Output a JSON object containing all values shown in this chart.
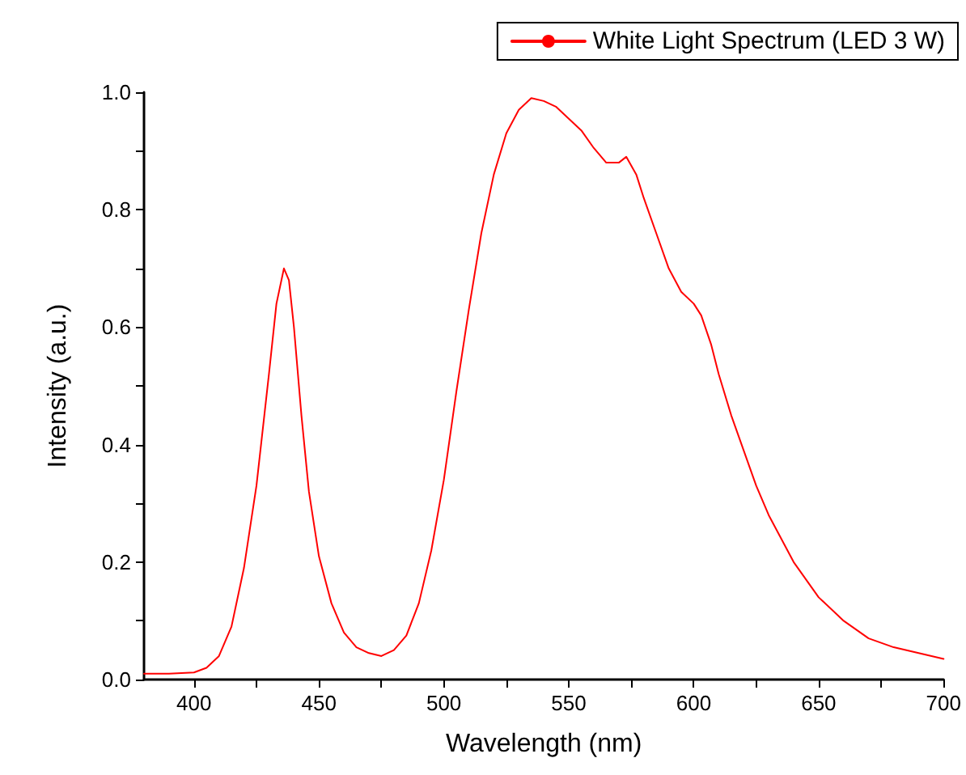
{
  "chart_data": {
    "type": "line",
    "xlabel": "Wavelength (nm)",
    "ylabel": "Intensity (a.u.)",
    "xlim": [
      380,
      700
    ],
    "ylim": [
      0,
      1.0
    ],
    "xticks": [
      {
        "value": 400,
        "label": "400"
      },
      {
        "value": 425,
        "label": null
      },
      {
        "value": 450,
        "label": "450"
      },
      {
        "value": 475,
        "label": null
      },
      {
        "value": 500,
        "label": "500"
      },
      {
        "value": 525,
        "label": null
      },
      {
        "value": 550,
        "label": "550"
      },
      {
        "value": 575,
        "label": null
      },
      {
        "value": 600,
        "label": "600"
      },
      {
        "value": 625,
        "label": null
      },
      {
        "value": 650,
        "label": "650"
      },
      {
        "value": 675,
        "label": null
      },
      {
        "value": 700,
        "label": "700"
      }
    ],
    "yticks": [
      {
        "value": 0,
        "label": "0.0"
      },
      {
        "value": 0.1,
        "label": null
      },
      {
        "value": 0.2,
        "label": "0.2"
      },
      {
        "value": 0.3,
        "label": null
      },
      {
        "value": 0.4,
        "label": "0.4"
      },
      {
        "value": 0.5,
        "label": null
      },
      {
        "value": 0.6,
        "label": "0.6"
      },
      {
        "value": 0.7,
        "label": null
      },
      {
        "value": 0.8,
        "label": "0.8"
      },
      {
        "value": 0.9,
        "label": null
      },
      {
        "value": 1.0,
        "label": "1.0"
      }
    ],
    "grid": false,
    "legend": "top right",
    "marker": "none",
    "line_style": "solid",
    "series": [
      {
        "name": "White Light Spectrum (LED 3 W)",
        "color": "#ff0000",
        "x": [
          380,
          390,
          400,
          405,
          410,
          415,
          420,
          425,
          430,
          433,
          436,
          438,
          440,
          443,
          446,
          450,
          455,
          460,
          465,
          470,
          475,
          480,
          485,
          490,
          495,
          500,
          505,
          510,
          515,
          520,
          525,
          530,
          535,
          540,
          545,
          550,
          555,
          560,
          565,
          570,
          573,
          577,
          580,
          585,
          590,
          595,
          600,
          603,
          607,
          610,
          615,
          620,
          625,
          630,
          640,
          650,
          660,
          670,
          680,
          690,
          700
        ],
        "values": [
          0.01,
          0.01,
          0.012,
          0.02,
          0.04,
          0.09,
          0.19,
          0.33,
          0.52,
          0.64,
          0.7,
          0.68,
          0.6,
          0.45,
          0.32,
          0.21,
          0.13,
          0.08,
          0.055,
          0.045,
          0.04,
          0.05,
          0.075,
          0.13,
          0.22,
          0.34,
          0.49,
          0.63,
          0.76,
          0.86,
          0.93,
          0.97,
          0.99,
          0.985,
          0.975,
          0.955,
          0.935,
          0.905,
          0.88,
          0.88,
          0.89,
          0.86,
          0.82,
          0.76,
          0.7,
          0.66,
          0.64,
          0.62,
          0.57,
          0.52,
          0.45,
          0.39,
          0.33,
          0.28,
          0.2,
          0.14,
          0.1,
          0.07,
          0.055,
          0.045,
          0.035
        ]
      }
    ]
  }
}
